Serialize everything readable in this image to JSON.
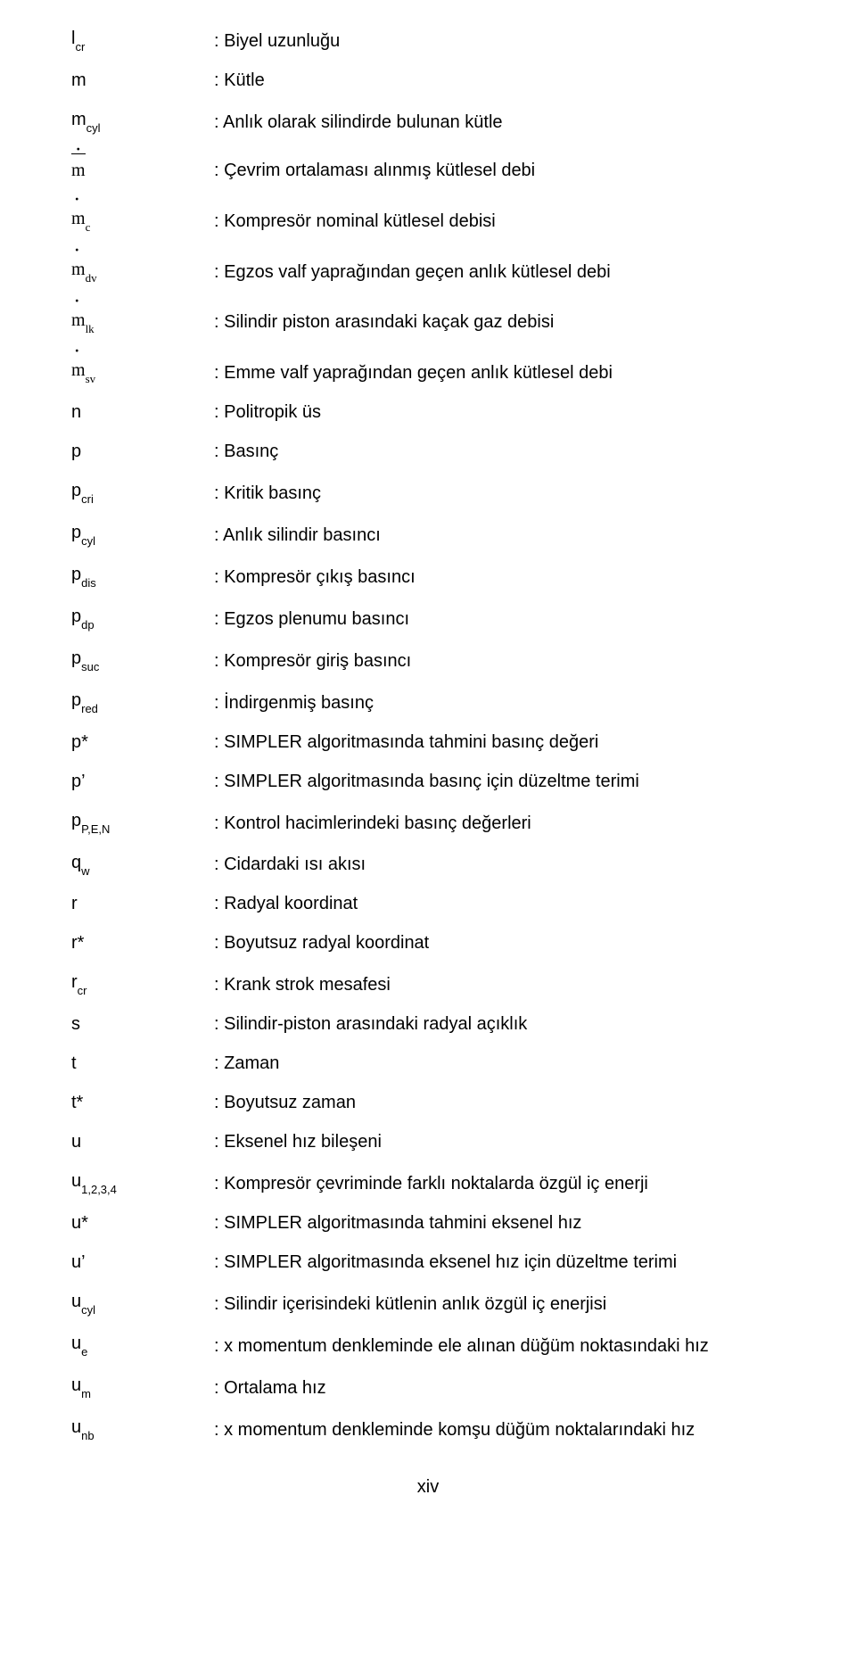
{
  "rows": [
    {
      "sym_main": "l",
      "sym_sub": "cr",
      "desc": ": Biyel uzunluğu"
    },
    {
      "sym_main": "m",
      "sym_sub": "",
      "desc": ": Kütle"
    },
    {
      "sym_main": "m",
      "sym_sub": "cyl",
      "desc": ": Anlık olarak silindirde bulunan kütle"
    },
    {
      "sym_main": "m",
      "sym_sub": "",
      "serif": true,
      "overline_dot": true,
      "extra_gap": true,
      "desc": ": Çevrim ortalaması alınmış kütlesel debi"
    },
    {
      "sym_main": "m",
      "sym_sub": "c",
      "serif": true,
      "dot": true,
      "extra_gap": true,
      "desc": ": Kompresör nominal kütlesel debisi"
    },
    {
      "sym_main": "m",
      "sym_sub": "dv",
      "serif": true,
      "dot": true,
      "extra_gap": true,
      "desc": ": Egzos valf yaprağından geçen anlık kütlesel debi"
    },
    {
      "sym_main": "m",
      "sym_sub": "lk",
      "serif": true,
      "dot": true,
      "extra_gap": true,
      "desc": ": Silindir piston arasındaki kaçak gaz debisi"
    },
    {
      "sym_main": "m",
      "sym_sub": "sv",
      "serif": true,
      "dot": true,
      "extra_gap": true,
      "desc": ": Emme valf yaprağından geçen anlık kütlesel debi"
    },
    {
      "sym_main": "n",
      "sym_sub": "",
      "desc": ": Politropik üs"
    },
    {
      "sym_main": "p",
      "sym_sub": "",
      "desc": ": Basınç"
    },
    {
      "sym_main": "p",
      "sym_sub": "cri",
      "desc": ": Kritik basınç"
    },
    {
      "sym_main": "p",
      "sym_sub": "cyl",
      "desc": ": Anlık silindir basıncı"
    },
    {
      "sym_main": "p",
      "sym_sub": "dis",
      "desc": ": Kompresör çıkış basıncı"
    },
    {
      "sym_main": "p",
      "sym_sub": "dp",
      "desc": ": Egzos plenumu basıncı"
    },
    {
      "sym_main": "p",
      "sym_sub": "suc",
      "desc": ": Kompresör giriş basıncı"
    },
    {
      "sym_main": "p",
      "sym_sub": "red",
      "desc": ": İndirgenmiş basınç"
    },
    {
      "sym_main": "p*",
      "sym_sub": "",
      "desc": ": SIMPLER algoritmasında tahmini basınç değeri"
    },
    {
      "sym_main": "p’",
      "sym_sub": "",
      "desc": ": SIMPLER algoritmasında basınç için düzeltme terimi"
    },
    {
      "sym_main": "p",
      "sym_sub": "P,E,N",
      "desc": ": Kontrol hacimlerindeki basınç değerleri"
    },
    {
      "sym_main": "q",
      "sym_sub": "w",
      "desc": ": Cidardaki ısı akısı"
    },
    {
      "sym_main": "r",
      "sym_sub": "",
      "desc": ": Radyal koordinat"
    },
    {
      "sym_main": "r*",
      "sym_sub": "",
      "desc": ": Boyutsuz radyal koordinat"
    },
    {
      "sym_main": "r",
      "sym_sub": "cr",
      "desc": ": Krank strok mesafesi"
    },
    {
      "sym_main": "s",
      "sym_sub": "",
      "desc": ": Silindir-piston arasındaki radyal açıklık"
    },
    {
      "sym_main": "t",
      "sym_sub": "",
      "desc": ": Zaman"
    },
    {
      "sym_main": "t*",
      "sym_sub": "",
      "desc": ": Boyutsuz zaman"
    },
    {
      "sym_main": "u",
      "sym_sub": "",
      "desc": ": Eksenel hız bileşeni"
    },
    {
      "sym_main": "u",
      "sym_sub": "1,2,3,4",
      "desc": ": Kompresör çevriminde farklı noktalarda özgül iç enerji"
    },
    {
      "sym_main": "u*",
      "sym_sub": "",
      "desc": ": SIMPLER algoritmasında tahmini eksenel hız"
    },
    {
      "sym_main": "u’",
      "sym_sub": "",
      "desc": ": SIMPLER algoritmasında eksenel hız için düzeltme terimi"
    },
    {
      "sym_main": "u",
      "sym_sub": "cyl",
      "desc": ": Silindir içerisindeki kütlenin anlık özgül iç enerjisi"
    },
    {
      "sym_main": "u",
      "sym_sub": "e",
      "desc": ": x momentum denkleminde ele alınan düğüm noktasındaki hız"
    },
    {
      "sym_main": "u",
      "sym_sub": "m",
      "desc": ": Ortalama hız"
    },
    {
      "sym_main": "u",
      "sym_sub": "nb",
      "desc": ": x momentum denkleminde komşu düğüm noktalarındaki hız"
    }
  ],
  "page_number": "xiv"
}
